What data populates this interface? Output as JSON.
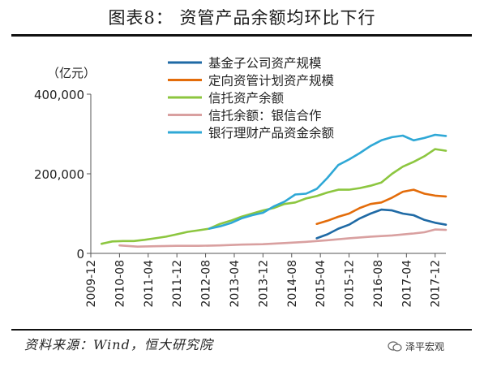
{
  "header": {
    "title": "图表8：  资管产品余额均环比下行"
  },
  "footer": {
    "source": "资料来源：Wind，恒大研究院",
    "brand": "泽平宏观"
  },
  "chart_data": {
    "type": "line",
    "unit_label": "（亿元）",
    "xlabel": "",
    "ylabel": "",
    "ylim": [
      0,
      400000
    ],
    "y_ticks": [
      0,
      200000,
      400000
    ],
    "y_tick_labels": [
      "0",
      "200,000",
      "400,000"
    ],
    "x_start": "2009-12",
    "x_end": "2018-03",
    "x_ticks": [
      "2009-12",
      "2010-08",
      "2011-04",
      "2011-12",
      "2012-08",
      "2013-04",
      "2013-12",
      "2014-08",
      "2015-04",
      "2015-12",
      "2016-08",
      "2017-04",
      "2017-12"
    ],
    "legend_position": "top-right",
    "series": [
      {
        "name": "基金子公司资产规模",
        "color": "#1F6AA5",
        "points": [
          [
            "2015-03",
            38000
          ],
          [
            "2015-06",
            48000
          ],
          [
            "2015-09",
            62000
          ],
          [
            "2015-12",
            72000
          ],
          [
            "2016-03",
            88000
          ],
          [
            "2016-06",
            100000
          ],
          [
            "2016-09",
            110000
          ],
          [
            "2016-12",
            108000
          ],
          [
            "2017-03",
            100000
          ],
          [
            "2017-06",
            96000
          ],
          [
            "2017-09",
            84000
          ],
          [
            "2017-12",
            77000
          ],
          [
            "2018-03",
            72000
          ]
        ]
      },
      {
        "name": "定向资管计划资产规模",
        "color": "#E36C0A",
        "points": [
          [
            "2015-03",
            74000
          ],
          [
            "2015-06",
            82000
          ],
          [
            "2015-09",
            92000
          ],
          [
            "2015-12",
            100000
          ],
          [
            "2016-03",
            114000
          ],
          [
            "2016-06",
            124000
          ],
          [
            "2016-09",
            128000
          ],
          [
            "2016-12",
            140000
          ],
          [
            "2017-03",
            155000
          ],
          [
            "2017-06",
            160000
          ],
          [
            "2017-09",
            150000
          ],
          [
            "2017-12",
            145000
          ],
          [
            "2018-03",
            143000
          ]
        ]
      },
      {
        "name": "信托资产余额",
        "color": "#8CC63F",
        "points": [
          [
            "2010-03",
            24000
          ],
          [
            "2010-06",
            30000
          ],
          [
            "2010-09",
            31000
          ],
          [
            "2010-12",
            31000
          ],
          [
            "2011-03",
            34000
          ],
          [
            "2011-06",
            38000
          ],
          [
            "2011-09",
            42000
          ],
          [
            "2011-12",
            48000
          ],
          [
            "2012-03",
            54000
          ],
          [
            "2012-06",
            58000
          ],
          [
            "2012-09",
            62000
          ],
          [
            "2012-12",
            74000
          ],
          [
            "2013-03",
            82000
          ],
          [
            "2013-06",
            92000
          ],
          [
            "2013-09",
            100000
          ],
          [
            "2013-12",
            108000
          ],
          [
            "2014-03",
            114000
          ],
          [
            "2014-06",
            124000
          ],
          [
            "2014-09",
            128000
          ],
          [
            "2014-12",
            138000
          ],
          [
            "2015-03",
            144000
          ],
          [
            "2015-06",
            153000
          ],
          [
            "2015-09",
            160000
          ],
          [
            "2015-12",
            160000
          ],
          [
            "2016-03",
            164000
          ],
          [
            "2016-06",
            170000
          ],
          [
            "2016-09",
            178000
          ],
          [
            "2016-12",
            200000
          ],
          [
            "2017-03",
            218000
          ],
          [
            "2017-06",
            230000
          ],
          [
            "2017-09",
            244000
          ],
          [
            "2017-12",
            262000
          ],
          [
            "2018-03",
            258000
          ]
        ]
      },
      {
        "name": "信托余额：银信合作",
        "color": "#D9A0A0",
        "points": [
          [
            "2010-08",
            20000
          ],
          [
            "2011-01",
            17000
          ],
          [
            "2011-06",
            18000
          ],
          [
            "2011-12",
            19000
          ],
          [
            "2012-06",
            19000
          ],
          [
            "2012-12",
            20000
          ],
          [
            "2013-06",
            22000
          ],
          [
            "2013-12",
            23000
          ],
          [
            "2014-06",
            26000
          ],
          [
            "2014-12",
            29000
          ],
          [
            "2015-06",
            33000
          ],
          [
            "2015-12",
            38000
          ],
          [
            "2016-06",
            42000
          ],
          [
            "2016-12",
            45000
          ],
          [
            "2017-06",
            50000
          ],
          [
            "2017-09",
            53000
          ],
          [
            "2017-12",
            60000
          ],
          [
            "2018-03",
            59000
          ]
        ]
      },
      {
        "name": "银行理财产品资金余额",
        "color": "#2FA8D6",
        "points": [
          [
            "2012-09",
            62000
          ],
          [
            "2012-12",
            68000
          ],
          [
            "2013-03",
            76000
          ],
          [
            "2013-06",
            88000
          ],
          [
            "2013-09",
            96000
          ],
          [
            "2013-12",
            102000
          ],
          [
            "2014-03",
            118000
          ],
          [
            "2014-06",
            130000
          ],
          [
            "2014-09",
            148000
          ],
          [
            "2014-12",
            150000
          ],
          [
            "2015-03",
            162000
          ],
          [
            "2015-06",
            190000
          ],
          [
            "2015-09",
            222000
          ],
          [
            "2015-12",
            236000
          ],
          [
            "2016-03",
            252000
          ],
          [
            "2016-06",
            270000
          ],
          [
            "2016-09",
            284000
          ],
          [
            "2016-12",
            292000
          ],
          [
            "2017-03",
            296000
          ],
          [
            "2017-06",
            284000
          ],
          [
            "2017-09",
            290000
          ],
          [
            "2017-12",
            298000
          ],
          [
            "2018-03",
            295000
          ]
        ]
      }
    ]
  }
}
